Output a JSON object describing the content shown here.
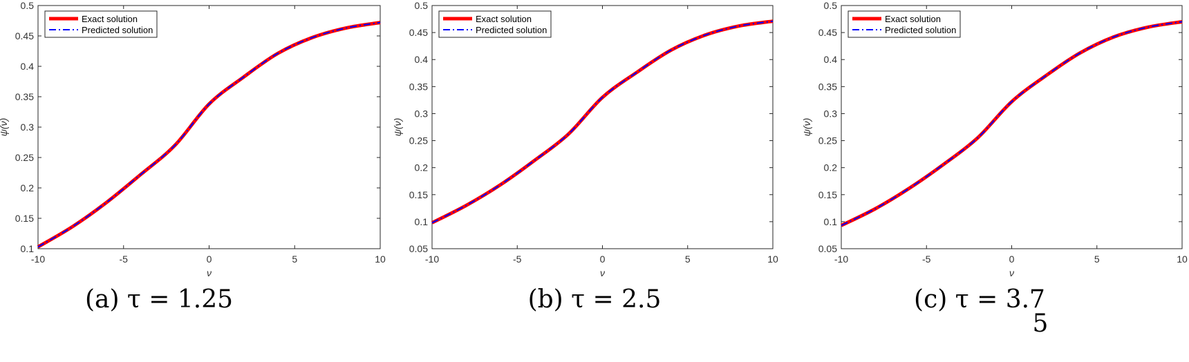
{
  "chart_data": [
    {
      "type": "line",
      "caption": "(a) τ = 1.25",
      "xlabel": "ν",
      "ylabel": "ψ(ν)",
      "xlim": [
        -10,
        10
      ],
      "ylim": [
        0.1,
        0.5
      ],
      "xticks": [
        -10,
        -5,
        0,
        5,
        10
      ],
      "yticks": [
        0.1,
        0.15,
        0.2,
        0.25,
        0.3,
        0.35,
        0.4,
        0.45,
        0.5
      ],
      "legend_position": "top-left",
      "x": [
        -10,
        -8,
        -6,
        -4,
        -2,
        0,
        2,
        4,
        6,
        8,
        10
      ],
      "series": [
        {
          "name": "Exact solution",
          "color": "#ff0000",
          "style": "solid",
          "values": [
            0.103,
            0.136,
            0.176,
            0.222,
            0.27,
            0.338,
            0.382,
            0.421,
            0.447,
            0.463,
            0.472
          ]
        },
        {
          "name": "Predicted solution",
          "color": "#0000ff",
          "style": "dashdot",
          "values": [
            0.103,
            0.136,
            0.176,
            0.222,
            0.27,
            0.338,
            0.382,
            0.421,
            0.447,
            0.463,
            0.472
          ]
        }
      ]
    },
    {
      "type": "line",
      "caption": "(b) τ = 2.5",
      "xlabel": "ν",
      "ylabel": "ψ(ν)",
      "xlim": [
        -10,
        10
      ],
      "ylim": [
        0.05,
        0.5
      ],
      "xticks": [
        -10,
        -5,
        0,
        5,
        10
      ],
      "yticks": [
        0.05,
        0.1,
        0.15,
        0.2,
        0.25,
        0.3,
        0.35,
        0.4,
        0.45,
        0.5
      ],
      "legend_position": "top-left",
      "x": [
        -10,
        -8,
        -6,
        -4,
        -2,
        0,
        2,
        4,
        6,
        8,
        10
      ],
      "series": [
        {
          "name": "Exact solution",
          "color": "#ff0000",
          "style": "solid",
          "values": [
            0.098,
            0.13,
            0.168,
            0.213,
            0.262,
            0.33,
            0.376,
            0.417,
            0.445,
            0.462,
            0.471
          ]
        },
        {
          "name": "Predicted solution",
          "color": "#0000ff",
          "style": "dashdot",
          "values": [
            0.098,
            0.13,
            0.168,
            0.213,
            0.262,
            0.33,
            0.376,
            0.417,
            0.445,
            0.462,
            0.471
          ]
        }
      ]
    },
    {
      "type": "line",
      "caption": "(c) τ = 3.7",
      "caption_extra": "5",
      "xlabel": "ν",
      "ylabel": "ψ(ν)",
      "xlim": [
        -10,
        10
      ],
      "ylim": [
        0.05,
        0.5
      ],
      "xticks": [
        -10,
        -5,
        0,
        5,
        10
      ],
      "yticks": [
        0.05,
        0.1,
        0.15,
        0.2,
        0.25,
        0.3,
        0.35,
        0.4,
        0.45,
        0.5
      ],
      "legend_position": "top-left",
      "x": [
        -10,
        -8,
        -6,
        -4,
        -2,
        0,
        2,
        4,
        6,
        8,
        10
      ],
      "series": [
        {
          "name": "Exact solution",
          "color": "#ff0000",
          "style": "solid",
          "values": [
            0.093,
            0.124,
            0.162,
            0.206,
            0.255,
            0.322,
            0.37,
            0.412,
            0.442,
            0.46,
            0.47
          ]
        },
        {
          "name": "Predicted solution",
          "color": "#0000ff",
          "style": "dashdot",
          "values": [
            0.093,
            0.124,
            0.162,
            0.206,
            0.255,
            0.322,
            0.37,
            0.412,
            0.442,
            0.46,
            0.47
          ]
        }
      ]
    }
  ]
}
